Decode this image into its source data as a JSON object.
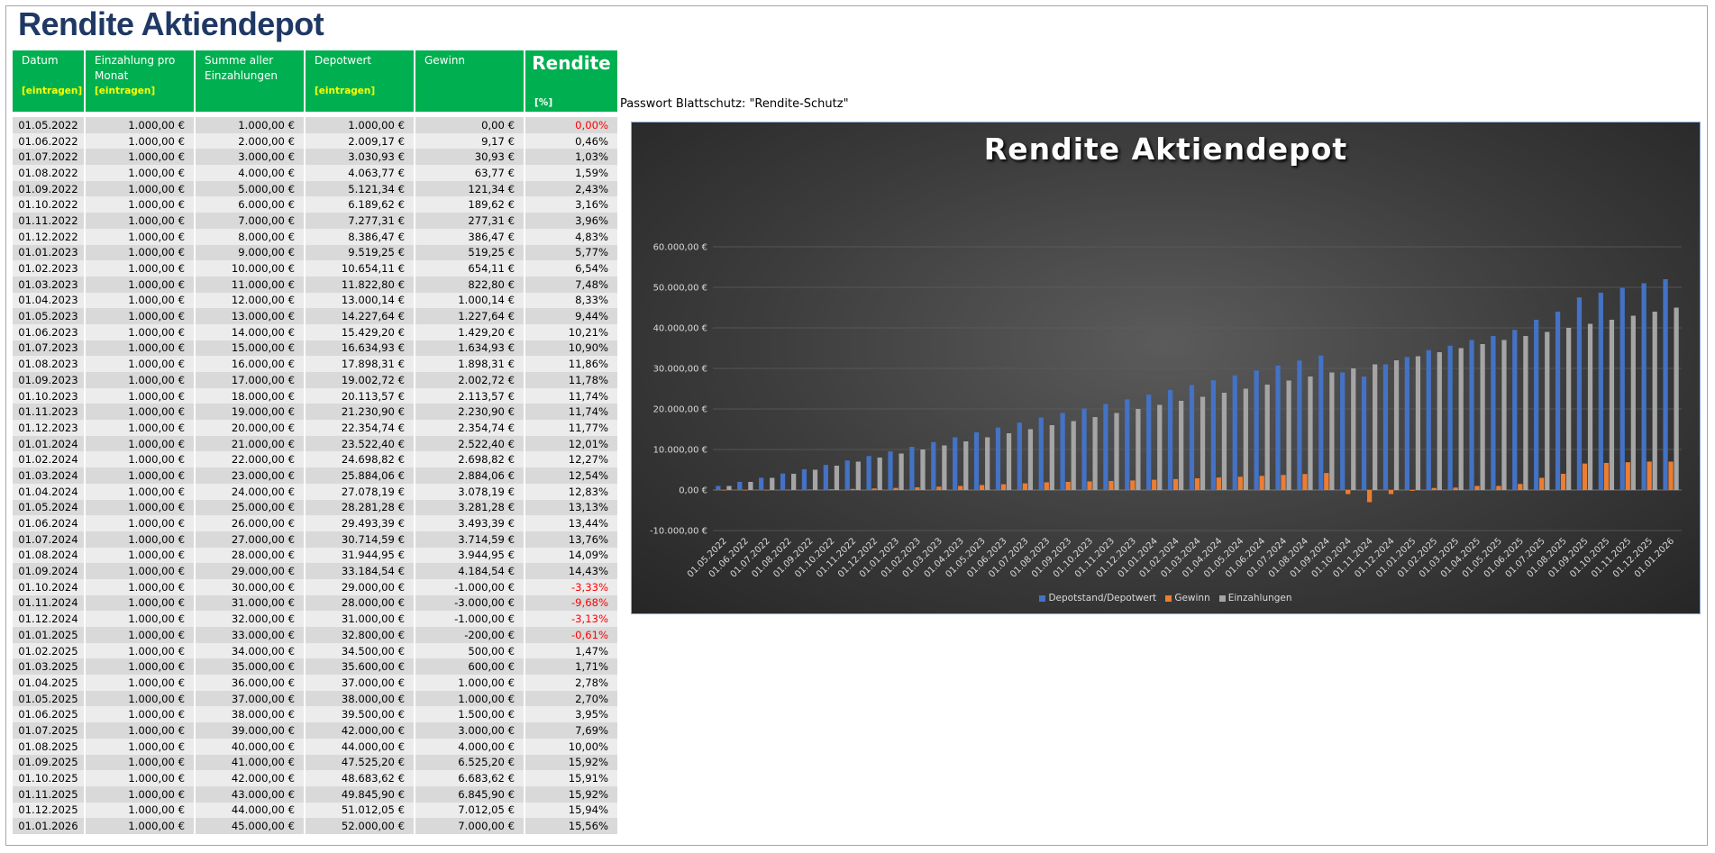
{
  "page": {
    "title": "Rendite Aktiendepot",
    "password_note": "Passwort Blattschutz: \"Rendite-Schutz\""
  },
  "table": {
    "headers": [
      {
        "label": "Datum",
        "sub": "[eintragen]"
      },
      {
        "label": "Einzahlung pro Monat",
        "sub": "[eintragen]"
      },
      {
        "label": "Summe aller Einzahlungen",
        "sub": ""
      },
      {
        "label": "Depotwert",
        "sub": "[eintragen]"
      },
      {
        "label": "Gewinn",
        "sub": ""
      },
      {
        "label": "Rendite",
        "sub": "[%]"
      }
    ],
    "rows": [
      [
        "01.05.2022",
        "1.000,00 €",
        "1.000,00 €",
        "1.000,00 €",
        "0,00 €",
        "0,00%"
      ],
      [
        "01.06.2022",
        "1.000,00 €",
        "2.000,00 €",
        "2.009,17 €",
        "9,17 €",
        "0,46%"
      ],
      [
        "01.07.2022",
        "1.000,00 €",
        "3.000,00 €",
        "3.030,93 €",
        "30,93 €",
        "1,03%"
      ],
      [
        "01.08.2022",
        "1.000,00 €",
        "4.000,00 €",
        "4.063,77 €",
        "63,77 €",
        "1,59%"
      ],
      [
        "01.09.2022",
        "1.000,00 €",
        "5.000,00 €",
        "5.121,34 €",
        "121,34 €",
        "2,43%"
      ],
      [
        "01.10.2022",
        "1.000,00 €",
        "6.000,00 €",
        "6.189,62 €",
        "189,62 €",
        "3,16%"
      ],
      [
        "01.11.2022",
        "1.000,00 €",
        "7.000,00 €",
        "7.277,31 €",
        "277,31 €",
        "3,96%"
      ],
      [
        "01.12.2022",
        "1.000,00 €",
        "8.000,00 €",
        "8.386,47 €",
        "386,47 €",
        "4,83%"
      ],
      [
        "01.01.2023",
        "1.000,00 €",
        "9.000,00 €",
        "9.519,25 €",
        "519,25 €",
        "5,77%"
      ],
      [
        "01.02.2023",
        "1.000,00 €",
        "10.000,00 €",
        "10.654,11 €",
        "654,11 €",
        "6,54%"
      ],
      [
        "01.03.2023",
        "1.000,00 €",
        "11.000,00 €",
        "11.822,80 €",
        "822,80 €",
        "7,48%"
      ],
      [
        "01.04.2023",
        "1.000,00 €",
        "12.000,00 €",
        "13.000,14 €",
        "1.000,14 €",
        "8,33%"
      ],
      [
        "01.05.2023",
        "1.000,00 €",
        "13.000,00 €",
        "14.227,64 €",
        "1.227,64 €",
        "9,44%"
      ],
      [
        "01.06.2023",
        "1.000,00 €",
        "14.000,00 €",
        "15.429,20 €",
        "1.429,20 €",
        "10,21%"
      ],
      [
        "01.07.2023",
        "1.000,00 €",
        "15.000,00 €",
        "16.634,93 €",
        "1.634,93 €",
        "10,90%"
      ],
      [
        "01.08.2023",
        "1.000,00 €",
        "16.000,00 €",
        "17.898,31 €",
        "1.898,31 €",
        "11,86%"
      ],
      [
        "01.09.2023",
        "1.000,00 €",
        "17.000,00 €",
        "19.002,72 €",
        "2.002,72 €",
        "11,78%"
      ],
      [
        "01.10.2023",
        "1.000,00 €",
        "18.000,00 €",
        "20.113,57 €",
        "2.113,57 €",
        "11,74%"
      ],
      [
        "01.11.2023",
        "1.000,00 €",
        "19.000,00 €",
        "21.230,90 €",
        "2.230,90 €",
        "11,74%"
      ],
      [
        "01.12.2023",
        "1.000,00 €",
        "20.000,00 €",
        "22.354,74 €",
        "2.354,74 €",
        "11,77%"
      ],
      [
        "01.01.2024",
        "1.000,00 €",
        "21.000,00 €",
        "23.522,40 €",
        "2.522,40 €",
        "12,01%"
      ],
      [
        "01.02.2024",
        "1.000,00 €",
        "22.000,00 €",
        "24.698,82 €",
        "2.698,82 €",
        "12,27%"
      ],
      [
        "01.03.2024",
        "1.000,00 €",
        "23.000,00 €",
        "25.884,06 €",
        "2.884,06 €",
        "12,54%"
      ],
      [
        "01.04.2024",
        "1.000,00 €",
        "24.000,00 €",
        "27.078,19 €",
        "3.078,19 €",
        "12,83%"
      ],
      [
        "01.05.2024",
        "1.000,00 €",
        "25.000,00 €",
        "28.281,28 €",
        "3.281,28 €",
        "13,13%"
      ],
      [
        "01.06.2024",
        "1.000,00 €",
        "26.000,00 €",
        "29.493,39 €",
        "3.493,39 €",
        "13,44%"
      ],
      [
        "01.07.2024",
        "1.000,00 €",
        "27.000,00 €",
        "30.714,59 €",
        "3.714,59 €",
        "13,76%"
      ],
      [
        "01.08.2024",
        "1.000,00 €",
        "28.000,00 €",
        "31.944,95 €",
        "3.944,95 €",
        "14,09%"
      ],
      [
        "01.09.2024",
        "1.000,00 €",
        "29.000,00 €",
        "33.184,54 €",
        "4.184,54 €",
        "14,43%"
      ],
      [
        "01.10.2024",
        "1.000,00 €",
        "30.000,00 €",
        "29.000,00 €",
        "-1.000,00 €",
        "-3,33%"
      ],
      [
        "01.11.2024",
        "1.000,00 €",
        "31.000,00 €",
        "28.000,00 €",
        "-3.000,00 €",
        "-9,68%"
      ],
      [
        "01.12.2024",
        "1.000,00 €",
        "32.000,00 €",
        "31.000,00 €",
        "-1.000,00 €",
        "-3,13%"
      ],
      [
        "01.01.2025",
        "1.000,00 €",
        "33.000,00 €",
        "32.800,00 €",
        "-200,00 €",
        "-0,61%"
      ],
      [
        "01.02.2025",
        "1.000,00 €",
        "34.000,00 €",
        "34.500,00 €",
        "500,00 €",
        "1,47%"
      ],
      [
        "01.03.2025",
        "1.000,00 €",
        "35.000,00 €",
        "35.600,00 €",
        "600,00 €",
        "1,71%"
      ],
      [
        "01.04.2025",
        "1.000,00 €",
        "36.000,00 €",
        "37.000,00 €",
        "1.000,00 €",
        "2,78%"
      ],
      [
        "01.05.2025",
        "1.000,00 €",
        "37.000,00 €",
        "38.000,00 €",
        "1.000,00 €",
        "2,70%"
      ],
      [
        "01.06.2025",
        "1.000,00 €",
        "38.000,00 €",
        "39.500,00 €",
        "1.500,00 €",
        "3,95%"
      ],
      [
        "01.07.2025",
        "1.000,00 €",
        "39.000,00 €",
        "42.000,00 €",
        "3.000,00 €",
        "7,69%"
      ],
      [
        "01.08.2025",
        "1.000,00 €",
        "40.000,00 €",
        "44.000,00 €",
        "4.000,00 €",
        "10,00%"
      ],
      [
        "01.09.2025",
        "1.000,00 €",
        "41.000,00 €",
        "47.525,20 €",
        "6.525,20 €",
        "15,92%"
      ],
      [
        "01.10.2025",
        "1.000,00 €",
        "42.000,00 €",
        "48.683,62 €",
        "6.683,62 €",
        "15,91%"
      ],
      [
        "01.11.2025",
        "1.000,00 €",
        "43.000,00 €",
        "49.845,90 €",
        "6.845,90 €",
        "15,92%"
      ],
      [
        "01.12.2025",
        "1.000,00 €",
        "44.000,00 €",
        "51.012,05 €",
        "7.012,05 €",
        "15,94%"
      ],
      [
        "01.01.2026",
        "1.000,00 €",
        "45.000,00 €",
        "52.000,00 €",
        "7.000,00 €",
        "15,56%"
      ]
    ],
    "colors": {
      "header_bg": "#00b050",
      "header_text": "#ffffff",
      "header_hint": "#ffff00",
      "negative": "#ff0000",
      "row_a": "#d9d9d9",
      "row_b": "#ececec"
    }
  },
  "chart_data": {
    "type": "bar",
    "title": "Rendite Aktiendepot",
    "xlabel": "",
    "ylabel": "",
    "ylim": [
      -10000,
      60000
    ],
    "y_ticks": [
      -10000,
      0,
      10000,
      20000,
      30000,
      40000,
      50000,
      60000
    ],
    "y_tick_labels": [
      "-10.000,00 €",
      "0,00 €",
      "10.000,00 €",
      "20.000,00 €",
      "30.000,00 €",
      "40.000,00 €",
      "50.000,00 €",
      "60.000,00 €"
    ],
    "grid": true,
    "legend_position": "bottom",
    "categories": [
      "01.05.2022",
      "01.06.2022",
      "01.07.2022",
      "01.08.2022",
      "01.09.2022",
      "01.10.2022",
      "01.11.2022",
      "01.12.2022",
      "01.01.2023",
      "01.02.2023",
      "01.03.2023",
      "01.04.2023",
      "01.05.2023",
      "01.06.2023",
      "01.07.2023",
      "01.08.2023",
      "01.09.2023",
      "01.10.2023",
      "01.11.2023",
      "01.12.2023",
      "01.01.2024",
      "01.02.2024",
      "01.03.2024",
      "01.04.2024",
      "01.05.2024",
      "01.06.2024",
      "01.07.2024",
      "01.08.2024",
      "01.09.2024",
      "01.10.2024",
      "01.11.2024",
      "01.12.2024",
      "01.01.2025",
      "01.02.2025",
      "01.03.2025",
      "01.04.2025",
      "01.05.2025",
      "01.06.2025",
      "01.07.2025",
      "01.08.2025",
      "01.09.2025",
      "01.10.2025",
      "01.11.2025",
      "01.12.2025",
      "01.01.2026"
    ],
    "series": [
      {
        "name": "Depotstand/Depotwert",
        "color": "#4472c4",
        "values": [
          1000,
          2009.17,
          3030.93,
          4063.77,
          5121.34,
          6189.62,
          7277.31,
          8386.47,
          9519.25,
          10654.11,
          11822.8,
          13000.14,
          14227.64,
          15429.2,
          16634.93,
          17898.31,
          19002.72,
          20113.57,
          21230.9,
          22354.74,
          23522.4,
          24698.82,
          25884.06,
          27078.19,
          28281.28,
          29493.39,
          30714.59,
          31944.95,
          33184.54,
          29000,
          28000,
          31000,
          32800,
          34500,
          35600,
          37000,
          38000,
          39500,
          42000,
          44000,
          47525.2,
          48683.62,
          49845.9,
          51012.05,
          52000
        ]
      },
      {
        "name": "Gewinn",
        "color": "#ed7d31",
        "values": [
          0,
          9.17,
          30.93,
          63.77,
          121.34,
          189.62,
          277.31,
          386.47,
          519.25,
          654.11,
          822.8,
          1000.14,
          1227.64,
          1429.2,
          1634.93,
          1898.31,
          2002.72,
          2113.57,
          2230.9,
          2354.74,
          2522.4,
          2698.82,
          2884.06,
          3078.19,
          3281.28,
          3493.39,
          3714.59,
          3944.95,
          4184.54,
          -1000,
          -3000,
          -1000,
          -200,
          500,
          600,
          1000,
          1000,
          1500,
          3000,
          4000,
          6525.2,
          6683.62,
          6845.9,
          7012.05,
          7000
        ]
      },
      {
        "name": "Einzahlungen",
        "color": "#a5a5a5",
        "values": [
          1000,
          2000,
          3000,
          4000,
          5000,
          6000,
          7000,
          8000,
          9000,
          10000,
          11000,
          12000,
          13000,
          14000,
          15000,
          16000,
          17000,
          18000,
          19000,
          20000,
          21000,
          22000,
          23000,
          24000,
          25000,
          26000,
          27000,
          28000,
          29000,
          30000,
          31000,
          32000,
          33000,
          34000,
          35000,
          36000,
          37000,
          38000,
          39000,
          40000,
          41000,
          42000,
          43000,
          44000,
          45000
        ]
      }
    ]
  }
}
